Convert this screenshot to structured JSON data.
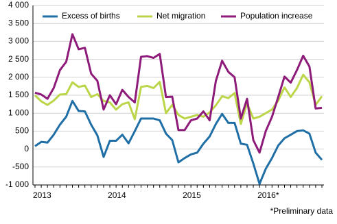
{
  "chart_data": {
    "type": "line",
    "categories": [
      "2013",
      null,
      null,
      null,
      null,
      null,
      null,
      null,
      null,
      null,
      null,
      null,
      "2014",
      null,
      null,
      null,
      null,
      null,
      null,
      null,
      null,
      null,
      null,
      null,
      "2015",
      null,
      null,
      null,
      null,
      null,
      null,
      null,
      null,
      null,
      null,
      null,
      "2016*",
      null,
      null,
      null,
      null,
      null,
      null,
      null,
      null,
      null,
      null
    ],
    "series": [
      {
        "name": "Excess of births",
        "color": "#1f6fa6",
        "values": [
          80,
          200,
          180,
          400,
          680,
          900,
          1340,
          1060,
          1050,
          680,
          380,
          -220,
          230,
          230,
          400,
          160,
          500,
          850,
          850,
          850,
          800,
          430,
          250,
          -370,
          -250,
          -150,
          -100,
          150,
          350,
          700,
          980,
          730,
          730,
          150,
          120,
          -400,
          -970,
          -550,
          -250,
          100,
          300,
          400,
          500,
          520,
          430,
          -100,
          -300
        ]
      },
      {
        "name": "Net migration",
        "color": "#bcd64a",
        "values": [
          1500,
          1330,
          1230,
          1350,
          1520,
          1530,
          1860,
          1730,
          1770,
          1450,
          1530,
          1340,
          1300,
          1100,
          1250,
          1300,
          830,
          1730,
          1760,
          1700,
          1870,
          1000,
          1230,
          950,
          850,
          900,
          950,
          900,
          1020,
          1220,
          1470,
          1420,
          1560,
          700,
          1280,
          850,
          900,
          1000,
          1100,
          1350,
          1720,
          1450,
          1700,
          2070,
          1860,
          1230,
          1470
        ]
      },
      {
        "name": "Population increase",
        "color": "#8e1a7a",
        "values": [
          1570,
          1520,
          1400,
          1700,
          2200,
          2430,
          3200,
          2780,
          2820,
          2100,
          1900,
          1100,
          1500,
          1250,
          1650,
          1450,
          1300,
          2570,
          2590,
          2540,
          2650,
          1450,
          1460,
          530,
          530,
          800,
          850,
          1050,
          800,
          1900,
          2460,
          2150,
          2000,
          850,
          1400,
          250,
          -100,
          500,
          900,
          1450,
          2020,
          1850,
          2200,
          2600,
          2300,
          1130,
          1150
        ]
      }
    ],
    "ylim": [
      -1000,
      4000
    ],
    "yticks": [
      {
        "value": -1000,
        "label": "-1 000"
      },
      {
        "value": -500,
        "label": "-500"
      },
      0,
      500,
      {
        "value": 1000,
        "label": "1 000"
      },
      {
        "value": 1500,
        "label": "1 500"
      },
      {
        "value": 2000,
        "label": "2 000"
      },
      {
        "value": 2500,
        "label": "2 500"
      },
      {
        "value": 3000,
        "label": "3 000"
      },
      {
        "value": 3500,
        "label": "3 500"
      },
      {
        "value": 4000,
        "label": "4 000"
      }
    ],
    "grid": true,
    "annotation": "*Preliminary data"
  }
}
